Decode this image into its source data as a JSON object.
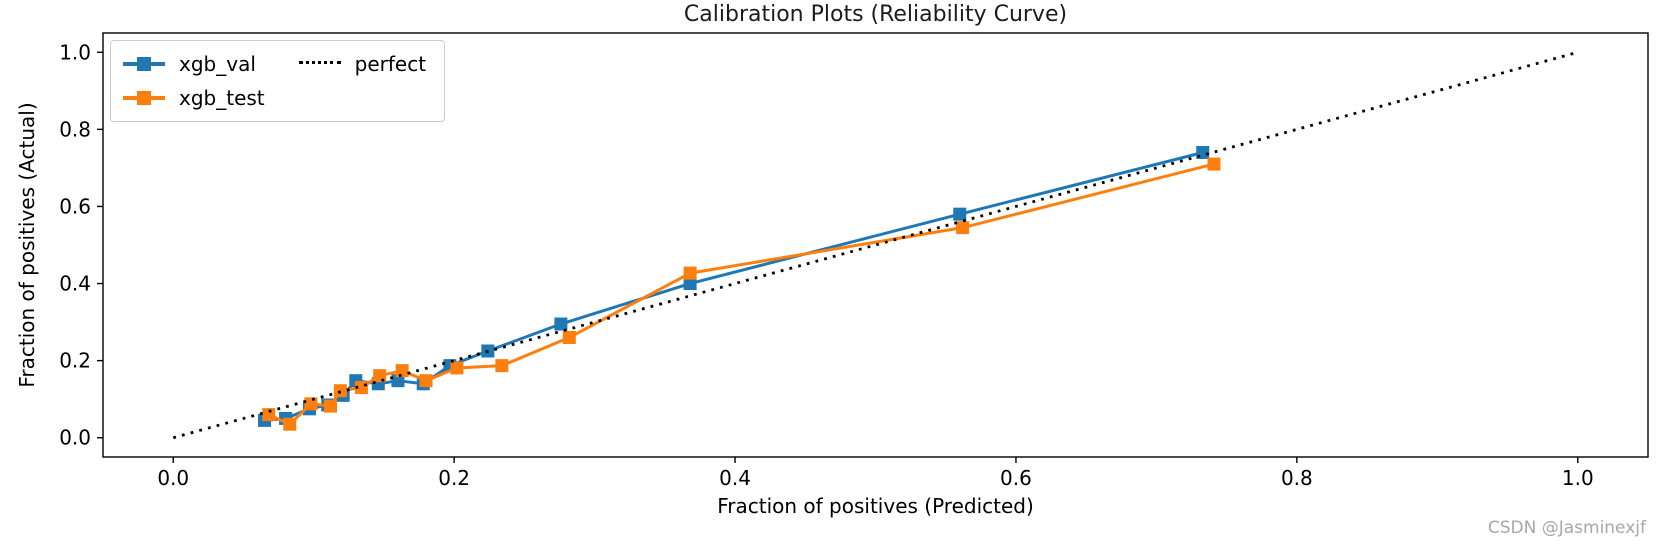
{
  "watermark": "CSDN @Jasminexjf",
  "chart_data": {
    "type": "line",
    "title": "Calibration Plots (Reliability Curve)",
    "xlabel": "Fraction of positives (Predicted)",
    "ylabel": "Fraction of positives (Actual)",
    "xlim": [
      -0.05,
      1.05
    ],
    "ylim": [
      -0.05,
      1.05
    ],
    "xticks": [
      0.0,
      0.2,
      0.4,
      0.6,
      0.8,
      1.0
    ],
    "yticks": [
      0.0,
      0.2,
      0.4,
      0.6,
      0.8,
      1.0
    ],
    "grid": false,
    "legend_position": "upper-left",
    "legend_columns": 2,
    "series": [
      {
        "name": "xgb_val",
        "color": "#1f77b4",
        "marker": "square",
        "style": "solid",
        "points": [
          [
            0.065,
            0.045
          ],
          [
            0.08,
            0.05
          ],
          [
            0.097,
            0.075
          ],
          [
            0.11,
            0.085
          ],
          [
            0.121,
            0.11
          ],
          [
            0.13,
            0.148
          ],
          [
            0.146,
            0.14
          ],
          [
            0.16,
            0.148
          ],
          [
            0.178,
            0.14
          ],
          [
            0.197,
            0.187
          ],
          [
            0.224,
            0.225
          ],
          [
            0.276,
            0.295
          ],
          [
            0.368,
            0.4
          ],
          [
            0.56,
            0.58
          ],
          [
            0.733,
            0.74
          ]
        ]
      },
      {
        "name": "xgb_test",
        "color": "#ff7f0e",
        "marker": "square",
        "style": "solid",
        "points": [
          [
            0.068,
            0.06
          ],
          [
            0.083,
            0.035
          ],
          [
            0.098,
            0.088
          ],
          [
            0.112,
            0.082
          ],
          [
            0.119,
            0.122
          ],
          [
            0.134,
            0.13
          ],
          [
            0.147,
            0.161
          ],
          [
            0.163,
            0.174
          ],
          [
            0.18,
            0.148
          ],
          [
            0.202,
            0.181
          ],
          [
            0.234,
            0.187
          ],
          [
            0.282,
            0.26
          ],
          [
            0.368,
            0.427
          ],
          [
            0.562,
            0.545
          ],
          [
            0.741,
            0.71
          ]
        ]
      },
      {
        "name": "perfect",
        "color": "#000000",
        "marker": "none",
        "style": "dotted",
        "points": [
          [
            0.0,
            0.0
          ],
          [
            1.0,
            1.0
          ]
        ]
      }
    ]
  }
}
